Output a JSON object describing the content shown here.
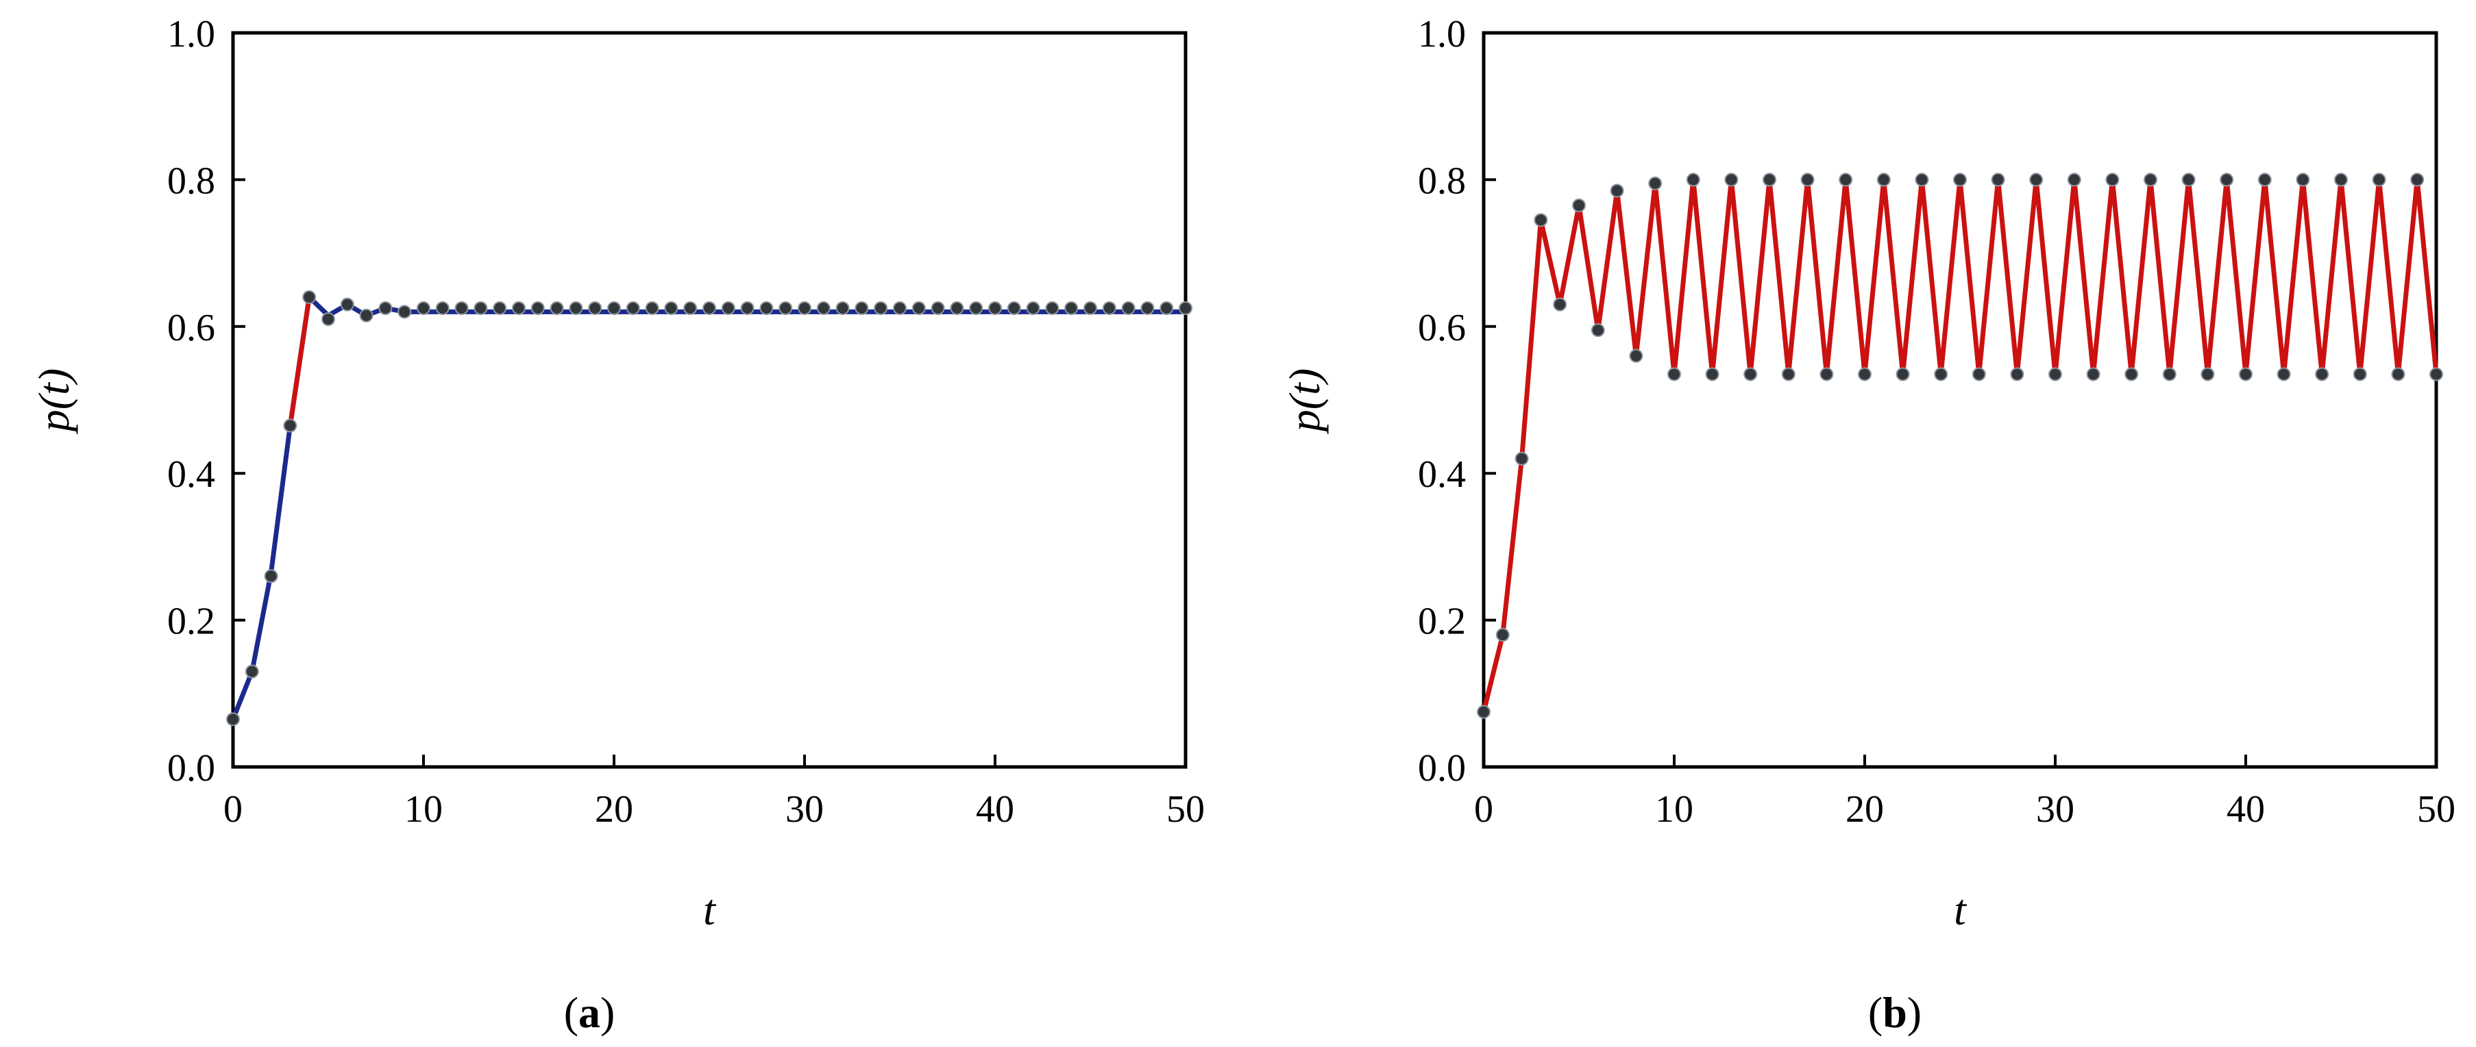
{
  "figure": {
    "panels": [
      {
        "label_prefix": "(",
        "label_bold": "a",
        "label_suffix": ")"
      },
      {
        "label_prefix": "(",
        "label_bold": "b",
        "label_suffix": ")"
      }
    ]
  },
  "chart_data": [
    {
      "type": "line",
      "panel": "a",
      "xlabel": "t",
      "ylabel": "p(t)",
      "xlim": [
        0,
        50
      ],
      "ylim": [
        0,
        1.0
      ],
      "xticks": [
        "0",
        "10",
        "20",
        "30",
        "40",
        "50"
      ],
      "yticks": [
        "0.0",
        "0.2",
        "0.4",
        "0.6",
        "0.8",
        "1.0"
      ],
      "grid": false,
      "colors": {
        "curve": "#1a2a8c",
        "highlight": "#cc1111",
        "markers": "#33363a"
      },
      "curve": {
        "x": [
          0,
          1,
          2,
          3,
          4,
          5,
          6,
          7,
          8,
          9,
          10,
          12,
          15,
          20,
          30,
          40,
          50
        ],
        "y": [
          0.065,
          0.13,
          0.265,
          0.465,
          0.64,
          0.615,
          0.63,
          0.615,
          0.625,
          0.62,
          0.62,
          0.62,
          0.62,
          0.62,
          0.62,
          0.62,
          0.62
        ]
      },
      "highlight_segment": {
        "x": [
          3,
          4
        ],
        "y": [
          0.465,
          0.64
        ]
      },
      "markers": {
        "x": [
          0,
          1,
          2,
          3,
          4,
          5,
          6,
          7,
          8,
          9,
          10,
          11,
          12,
          13,
          14,
          15,
          16,
          17,
          18,
          19,
          20,
          21,
          22,
          23,
          24,
          25,
          26,
          27,
          28,
          29,
          30,
          31,
          32,
          33,
          34,
          35,
          36,
          37,
          38,
          39,
          40,
          41,
          42,
          43,
          44,
          45,
          46,
          47,
          48,
          49,
          50
        ],
        "y": [
          0.065,
          0.13,
          0.26,
          0.465,
          0.64,
          0.61,
          0.63,
          0.615,
          0.625,
          0.62,
          0.625,
          0.625,
          0.625,
          0.625,
          0.625,
          0.625,
          0.625,
          0.625,
          0.625,
          0.625,
          0.625,
          0.625,
          0.625,
          0.625,
          0.625,
          0.625,
          0.625,
          0.625,
          0.625,
          0.625,
          0.625,
          0.625,
          0.625,
          0.625,
          0.625,
          0.625,
          0.625,
          0.625,
          0.625,
          0.625,
          0.625,
          0.625,
          0.625,
          0.625,
          0.625,
          0.625,
          0.625,
          0.625,
          0.625,
          0.625,
          0.625
        ]
      }
    },
    {
      "type": "line",
      "panel": "b",
      "xlabel": "t",
      "ylabel": "p(t)",
      "xlim": [
        0,
        50
      ],
      "ylim": [
        0,
        1.0
      ],
      "xticks": [
        "0",
        "10",
        "20",
        "30",
        "40",
        "50"
      ],
      "yticks": [
        "0.0",
        "0.2",
        "0.4",
        "0.6",
        "0.8",
        "1.0"
      ],
      "grid": false,
      "colors": {
        "curve": "#cc1111",
        "markers": "#33363a"
      },
      "curve": {
        "x": [
          0,
          1,
          2,
          3,
          4,
          5,
          6,
          7,
          8,
          9,
          10,
          11,
          12,
          13,
          14,
          15,
          16,
          17,
          18,
          19,
          20,
          21,
          22,
          23,
          24,
          25,
          26,
          27,
          28,
          29,
          30,
          31,
          32,
          33,
          34,
          35,
          36,
          37,
          38,
          39,
          40,
          41,
          42,
          43,
          44,
          45,
          46,
          47,
          48,
          49,
          50
        ],
        "y": [
          0.075,
          0.18,
          0.42,
          0.745,
          0.63,
          0.765,
          0.595,
          0.785,
          0.56,
          0.795,
          0.535,
          0.8,
          0.535,
          0.8,
          0.535,
          0.8,
          0.535,
          0.8,
          0.535,
          0.8,
          0.535,
          0.8,
          0.535,
          0.8,
          0.535,
          0.8,
          0.535,
          0.8,
          0.535,
          0.8,
          0.535,
          0.8,
          0.535,
          0.8,
          0.535,
          0.8,
          0.535,
          0.8,
          0.535,
          0.8,
          0.535,
          0.8,
          0.535,
          0.8,
          0.535,
          0.8,
          0.535,
          0.8,
          0.535,
          0.8,
          0.535
        ]
      },
      "markers": {
        "x": [
          0,
          1,
          2,
          3,
          4,
          5,
          6,
          7,
          8,
          9,
          10,
          11,
          12,
          13,
          14,
          15,
          16,
          17,
          18,
          19,
          20,
          21,
          22,
          23,
          24,
          25,
          26,
          27,
          28,
          29,
          30,
          31,
          32,
          33,
          34,
          35,
          36,
          37,
          38,
          39,
          40,
          41,
          42,
          43,
          44,
          45,
          46,
          47,
          48,
          49,
          50
        ],
        "y": [
          0.075,
          0.18,
          0.42,
          0.745,
          0.63,
          0.765,
          0.595,
          0.785,
          0.56,
          0.795,
          0.535,
          0.8,
          0.535,
          0.8,
          0.535,
          0.8,
          0.535,
          0.8,
          0.535,
          0.8,
          0.535,
          0.8,
          0.535,
          0.8,
          0.535,
          0.8,
          0.535,
          0.8,
          0.535,
          0.8,
          0.535,
          0.8,
          0.535,
          0.8,
          0.535,
          0.8,
          0.535,
          0.8,
          0.535,
          0.8,
          0.535,
          0.8,
          0.535,
          0.8,
          0.535,
          0.8,
          0.535,
          0.8,
          0.535,
          0.8,
          0.535
        ]
      }
    }
  ]
}
